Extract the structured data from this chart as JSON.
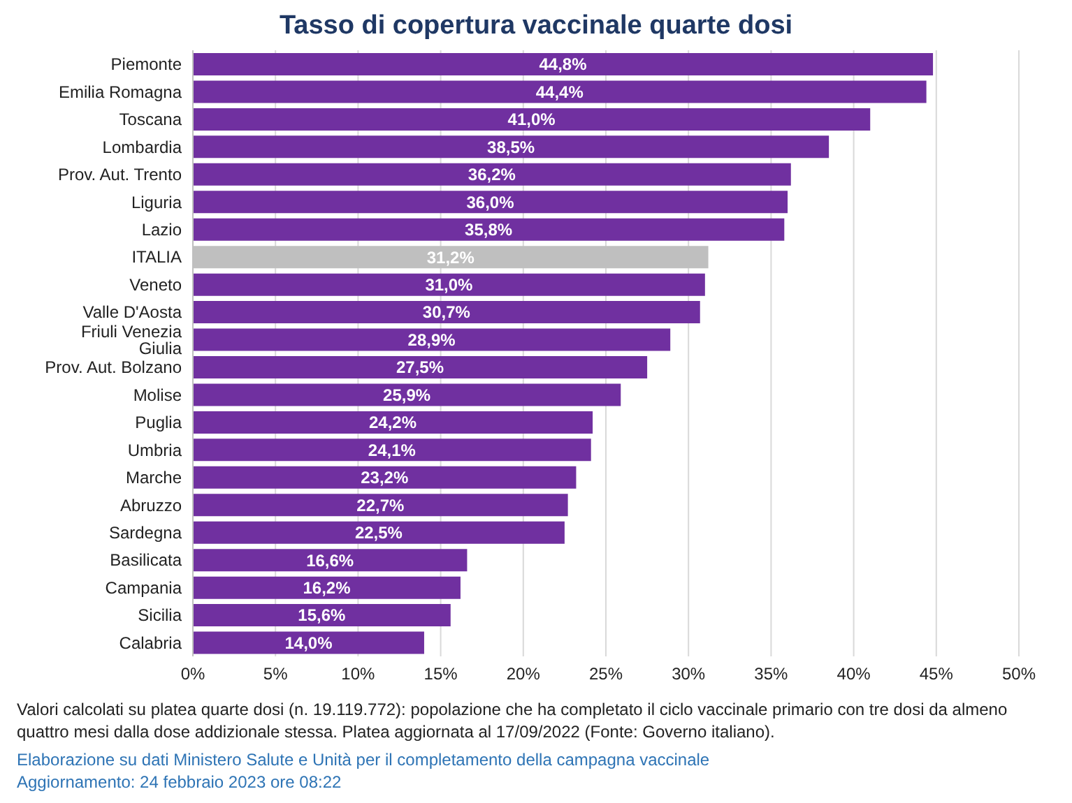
{
  "chart_data": {
    "type": "bar",
    "orientation": "horizontal",
    "title": "Tasso di copertura vaccinale quarte dosi",
    "categories": [
      "Piemonte",
      "Emilia Romagna",
      "Toscana",
      "Lombardia",
      "Prov. Aut. Trento",
      "Liguria",
      "Lazio",
      "ITALIA",
      "Veneto",
      "Valle D'Aosta",
      "Friuli Venezia Giulia",
      "Prov. Aut. Bolzano",
      "Molise",
      "Puglia",
      "Umbria",
      "Marche",
      "Abruzzo",
      "Sardegna",
      "Basilicata",
      "Campania",
      "Sicilia",
      "Calabria"
    ],
    "values": [
      44.8,
      44.4,
      41.0,
      38.5,
      36.2,
      36.0,
      35.8,
      31.2,
      31.0,
      30.7,
      28.9,
      27.5,
      25.9,
      24.2,
      24.1,
      23.2,
      22.7,
      22.5,
      16.6,
      16.2,
      15.6,
      14.0
    ],
    "value_labels": [
      "44,8%",
      "44,4%",
      "41,0%",
      "38,5%",
      "36,2%",
      "36,0%",
      "35,8%",
      "31,2%",
      "31,0%",
      "30,7%",
      "28,9%",
      "27,5%",
      "25,9%",
      "24,2%",
      "24,1%",
      "23,2%",
      "22,7%",
      "22,5%",
      "16,6%",
      "16,2%",
      "15,6%",
      "14,0%"
    ],
    "colors": [
      "#7030a0",
      "#7030a0",
      "#7030a0",
      "#7030a0",
      "#7030a0",
      "#7030a0",
      "#7030a0",
      "#bfbfbf",
      "#7030a0",
      "#7030a0",
      "#7030a0",
      "#7030a0",
      "#7030a0",
      "#7030a0",
      "#7030a0",
      "#7030a0",
      "#7030a0",
      "#7030a0",
      "#7030a0",
      "#7030a0",
      "#7030a0",
      "#7030a0"
    ],
    "xlim": [
      0,
      50
    ],
    "xticks": [
      {
        "value": 0,
        "label": "0%"
      },
      {
        "value": 5,
        "label": "5%"
      },
      {
        "value": 10,
        "label": "10%"
      },
      {
        "value": 15,
        "label": "15%"
      },
      {
        "value": 20,
        "label": "20%"
      },
      {
        "value": 25,
        "label": "25%"
      },
      {
        "value": 30,
        "label": "30%"
      },
      {
        "value": 35,
        "label": "35%"
      },
      {
        "value": 40,
        "label": "40%"
      },
      {
        "value": 45,
        "label": "45%"
      },
      {
        "value": 50,
        "label": "50%"
      }
    ],
    "grid": "x",
    "legend": false,
    "annotations": [
      "Valori calcolati su platea quarte dosi (n. 19.119.772): popolazione che ha completato il ciclo vaccinale primario con tre dosi da almeno quattro mesi dalla dose addizionale stessa. Platea aggiornata al 17/09/2022 (Fonte: Governo italiano).",
      "Elaborazione su dati Ministero Salute e Unità per il completamento della campagna vaccinale",
      "Aggiornamento: 24 febbraio 2023 ore 08:22"
    ]
  }
}
